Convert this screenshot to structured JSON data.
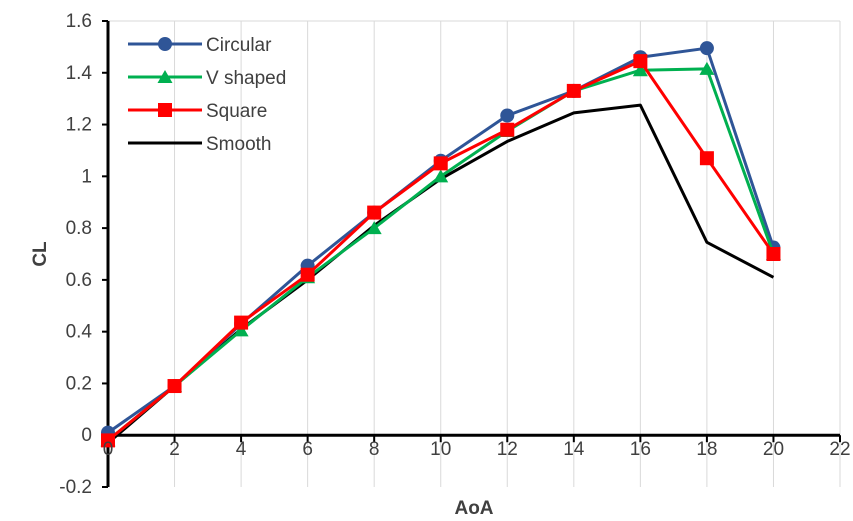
{
  "chart_data": {
    "type": "line",
    "xlabel": "AoA",
    "ylabel": "CL",
    "xlim": [
      0,
      22
    ],
    "ylim": [
      -0.2,
      1.6
    ],
    "x_ticks": [
      0,
      2,
      4,
      6,
      8,
      10,
      12,
      14,
      16,
      18,
      20,
      22
    ],
    "y_ticks": [
      -0.2,
      0,
      0.2,
      0.4,
      0.6,
      0.8,
      1,
      1.2,
      1.4,
      1.6
    ],
    "x_tick_labels": [
      "0",
      "2",
      "4",
      "6",
      "8",
      "10",
      "12",
      "14",
      "16",
      "18",
      "20",
      "22"
    ],
    "y_tick_labels": [
      "-0.2",
      "0",
      "0.2",
      "0.4",
      "0.6",
      "0.8",
      "1",
      "1.2",
      "1.4",
      "1.6"
    ],
    "grid": "vertical",
    "legend": "top-left",
    "x": [
      0,
      2,
      4,
      6,
      8,
      10,
      12,
      14,
      16,
      18,
      20
    ],
    "series": [
      {
        "name": "Circular",
        "color": "#2F5597",
        "marker": "circle",
        "values": [
          0.01,
          0.19,
          0.43,
          0.655,
          0.86,
          1.06,
          1.235,
          1.33,
          1.46,
          1.495,
          0.725
        ]
      },
      {
        "name": "V shaped",
        "color": "#00B050",
        "marker": "triangle",
        "values": [
          -0.02,
          0.19,
          0.405,
          0.61,
          0.8,
          1.0,
          1.175,
          1.33,
          1.41,
          1.415,
          0.7
        ]
      },
      {
        "name": "Square",
        "color": "#FF0000",
        "marker": "square",
        "values": [
          -0.02,
          0.19,
          0.435,
          0.62,
          0.86,
          1.05,
          1.18,
          1.33,
          1.445,
          1.07,
          0.7
        ]
      },
      {
        "name": "Smooth",
        "color": "#000000",
        "marker": "none",
        "values": [
          -0.03,
          0.19,
          0.41,
          0.6,
          0.81,
          0.99,
          1.135,
          1.245,
          1.275,
          0.745,
          0.61
        ]
      }
    ]
  }
}
